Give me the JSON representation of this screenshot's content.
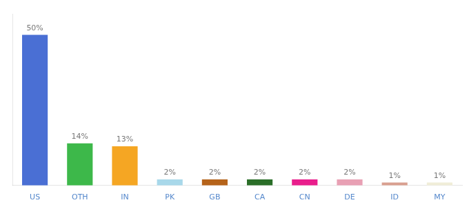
{
  "chart_data": {
    "type": "bar",
    "categories": [
      "US",
      "OTH",
      "IN",
      "PK",
      "GB",
      "CA",
      "CN",
      "DE",
      "ID",
      "MY"
    ],
    "values": [
      50,
      14,
      13,
      2,
      2,
      2,
      2,
      2,
      1,
      1
    ],
    "value_labels": [
      "50%",
      "14%",
      "13%",
      "2%",
      "2%",
      "2%",
      "2%",
      "2%",
      "1%",
      "1%"
    ],
    "colors": [
      "#4a6fd4",
      "#3db84a",
      "#f5a623",
      "#a8d8ea",
      "#b5631a",
      "#2a6e28",
      "#e91e8c",
      "#e8a0b4",
      "#d9a090",
      "#f0edd8"
    ],
    "ylim": [
      0,
      57
    ],
    "grid": false,
    "data_labels": true,
    "tick_labels": "x"
  }
}
